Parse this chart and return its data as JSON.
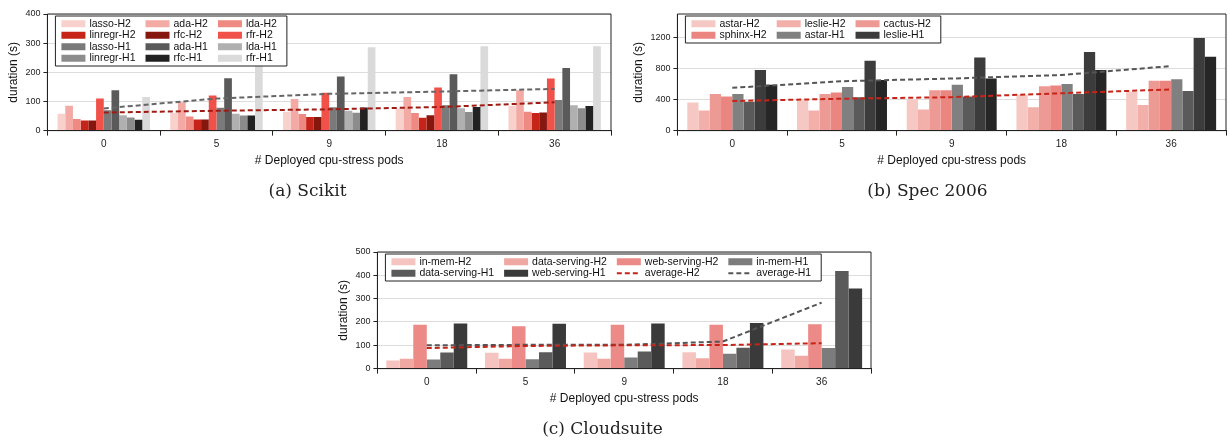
{
  "chart_data": [
    {
      "type": "bar",
      "title": "(a) Scikit",
      "xlabel": "# Deployed cpu-stress pods",
      "ylabel": "duration (s)",
      "categories": [
        "0",
        "5",
        "9",
        "18",
        "36"
      ],
      "ylim": [
        0,
        400
      ],
      "yticks": [
        0,
        100,
        200,
        300,
        400
      ],
      "grid": "y",
      "legend": "top left",
      "series": [
        {
          "name": "lasso-H2",
          "color": "#f8d0cc",
          "values": [
            58,
            60,
            65,
            76,
            85
          ]
        },
        {
          "name": "ada-H2",
          "color": "#f4aaa4",
          "values": [
            85,
            97,
            108,
            115,
            138
          ]
        },
        {
          "name": "lda-H2",
          "color": "#ee8a82",
          "values": [
            40,
            48,
            57,
            60,
            65
          ]
        },
        {
          "name": "linregr-H2",
          "color": "#c62418",
          "values": [
            35,
            38,
            47,
            44,
            60
          ]
        },
        {
          "name": "rfc-H2",
          "color": "#86170f",
          "values": [
            35,
            38,
            47,
            53,
            62
          ]
        },
        {
          "name": "rfr-H2",
          "color": "#f0524a",
          "values": [
            110,
            120,
            130,
            148,
            179
          ]
        },
        {
          "name": "lasso-H1",
          "color": "#7a7a7a",
          "values": [
            70,
            78,
            80,
            87,
            105
          ]
        },
        {
          "name": "ada-H1",
          "color": "#5a5a5a",
          "values": [
            138,
            180,
            186,
            193,
            215
          ]
        },
        {
          "name": "lda-H1",
          "color": "#b0b0b0",
          "values": [
            53,
            58,
            68,
            77,
            87
          ]
        },
        {
          "name": "linregr-H1",
          "color": "#8c8c8c",
          "values": [
            45,
            52,
            61,
            64,
            77
          ]
        },
        {
          "name": "rfc-H1",
          "color": "#222222",
          "values": [
            37,
            52,
            79,
            81,
            84
          ]
        },
        {
          "name": "rfr-H1",
          "color": "#dadada",
          "values": [
            115,
            225,
            286,
            289,
            289
          ]
        },
        {
          "type": "line",
          "color": "#a01a12",
          "line_style": "dashed",
          "marker": "none",
          "values": [
            62,
            68,
            73,
            81,
            97
          ]
        },
        {
          "type": "line",
          "color": "#666666",
          "line_style": "dashed",
          "marker": "none",
          "values": [
            76,
            110,
            126,
            134,
            143
          ]
        }
      ]
    },
    {
      "type": "bar",
      "title": "(b) Spec 2006",
      "xlabel": "# Deployed cpu-stress pods",
      "ylabel": "duration (s)",
      "categories": [
        "0",
        "5",
        "9",
        "18",
        "36"
      ],
      "ylim": [
        0,
        1500
      ],
      "yticks": [
        0,
        400,
        800,
        1200
      ],
      "grid": "y",
      "legend": "top left",
      "series": [
        {
          "name": "astar-H2",
          "color": "#f6c8c4",
          "values": [
            360,
            390,
            400,
            460,
            500
          ]
        },
        {
          "name": "leslie-H2",
          "color": "#f3b0aa",
          "values": [
            260,
            260,
            270,
            300,
            330
          ]
        },
        {
          "name": "cactus-H2",
          "color": "#ee9a94",
          "values": [
            470,
            470,
            520,
            570,
            640
          ]
        },
        {
          "name": "sphinx-H2",
          "color": "#eb8580",
          "values": [
            440,
            490,
            520,
            580,
            640
          ]
        },
        {
          "name": "astar-H1",
          "color": "#808080",
          "values": [
            470,
            560,
            590,
            600,
            660
          ]
        },
        {
          "color": "#5a5a5a",
          "values": [
            370,
            430,
            440,
            470,
            510
          ]
        },
        {
          "name": "leslie-H1",
          "color": "#3c3c3c",
          "values": [
            780,
            900,
            940,
            1010,
            1190
          ]
        },
        {
          "color": "#262626",
          "values": [
            590,
            650,
            670,
            780,
            950
          ]
        },
        {
          "type": "line",
          "color": "#c62418",
          "line_style": "dashed",
          "marker": "none",
          "values": [
            380,
            410,
            430,
            480,
            530
          ]
        },
        {
          "type": "line",
          "color": "#555555",
          "line_style": "dashed",
          "marker": "none",
          "values": [
            550,
            635,
            670,
            715,
            830
          ]
        }
      ]
    },
    {
      "type": "bar",
      "title": "(c) Cloudsuite",
      "xlabel": "# Deployed cpu-stress pods",
      "ylabel": "duration (s)",
      "categories": [
        "0",
        "5",
        "9",
        "18",
        "36"
      ],
      "ylim": [
        0,
        500
      ],
      "yticks": [
        0,
        100,
        200,
        300,
        400,
        500
      ],
      "grid": "y",
      "legend": "top left",
      "series": [
        {
          "name": "in-mem-H2",
          "color": "#f6c4c0",
          "values": [
            35,
            68,
            69,
            70,
            82
          ]
        },
        {
          "name": "data-serving-H2",
          "color": "#f0a8a2",
          "values": [
            42,
            42,
            42,
            44,
            55
          ]
        },
        {
          "name": "web-serving-H2",
          "color": "#eb8a86",
          "values": [
            188,
            182,
            188,
            188,
            190
          ]
        },
        {
          "name": "in-mem-H1",
          "color": "#7c7c7c",
          "values": [
            39,
            40,
            48,
            64,
            88
          ]
        },
        {
          "name": "data-serving-H1",
          "color": "#5a5a5a",
          "values": [
            69,
            70,
            73,
            89,
            418
          ]
        },
        {
          "name": "web-serving-H1",
          "color": "#3a3a3a",
          "values": [
            193,
            192,
            193,
            196,
            343
          ]
        },
        {
          "name": "average-H2",
          "type": "line",
          "color": "#c62418",
          "line_style": "dashed",
          "marker": "none",
          "values": [
            88,
            97,
            100,
            101,
            109
          ]
        },
        {
          "name": "average-H1",
          "type": "line",
          "color": "#555555",
          "line_style": "dashed",
          "marker": "none",
          "values": [
            100,
            102,
            102,
            116,
            283
          ]
        }
      ]
    }
  ]
}
